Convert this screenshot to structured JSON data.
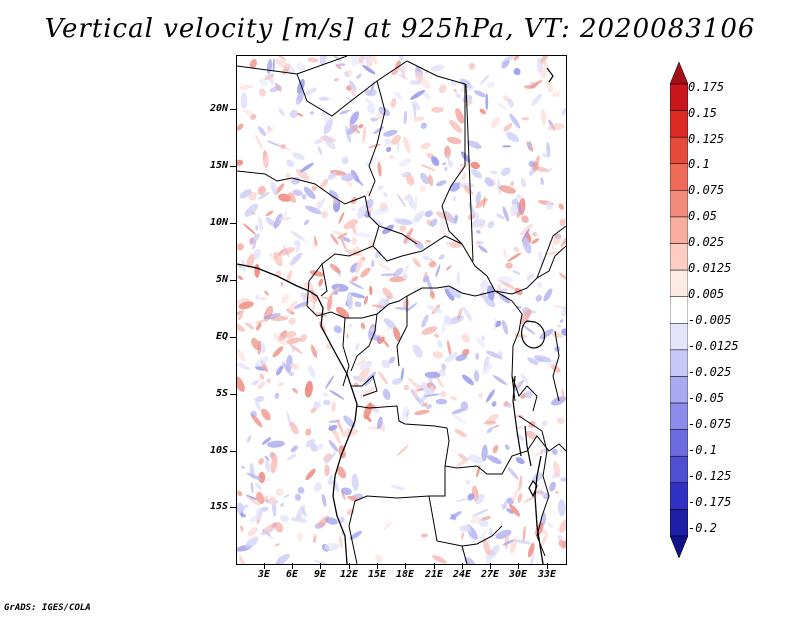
{
  "title": "Vertical velocity [m/s] at 925hPa, VT: 2020083106",
  "credit": "GrADS: IGES/COLA",
  "lat_labels": [
    "20N",
    "15N",
    "10N",
    "5N",
    "EQ",
    "5S",
    "10S",
    "15S"
  ],
  "lon_labels": [
    "3E",
    "6E",
    "9E",
    "12E",
    "15E",
    "18E",
    "21E",
    "24E",
    "27E",
    "30E",
    "33E"
  ],
  "colorbar": {
    "labels": [
      "0.175",
      "0.15",
      "0.125",
      "0.1",
      "0.075",
      "0.05",
      "0.025",
      "0.0125",
      "0.005",
      "-0.005",
      "-0.0125",
      "-0.025",
      "-0.05",
      "-0.075",
      "-0.1",
      "-0.125",
      "-0.175",
      "-0.2"
    ],
    "colors": [
      "#a50f15",
      "#c8161d",
      "#dc2a25",
      "#e64a3b",
      "#ee6a59",
      "#f38b7c",
      "#f8ad9f",
      "#fbcdc3",
      "#fdeae5",
      "#ffffff",
      "#e4e4fb",
      "#c8c8f6",
      "#a9a9f0",
      "#8b8be9",
      "#6c6ce0",
      "#4f4fd4",
      "#3030c2",
      "#1e1ea6",
      "#12128a"
    ]
  }
}
